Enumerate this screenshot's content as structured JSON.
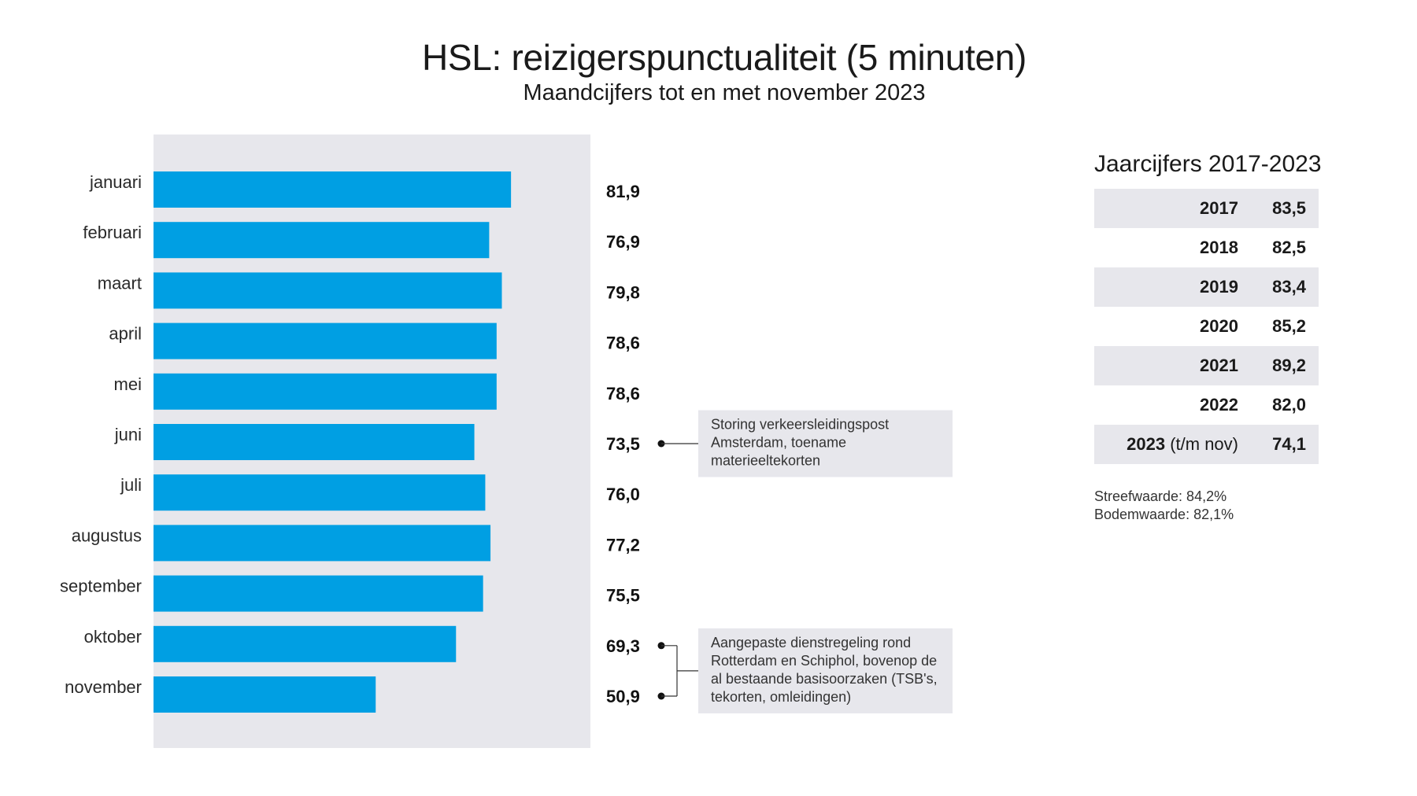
{
  "title": "HSL: reizigerspunctualiteit (5 minuten)",
  "subtitle": "Maandcijfers tot en met november 2023",
  "chart_data": {
    "type": "bar",
    "orientation": "horizontal",
    "categories": [
      "januari",
      "februari",
      "maart",
      "april",
      "mei",
      "juni",
      "juli",
      "augustus",
      "september",
      "oktober",
      "november"
    ],
    "values": [
      81.9,
      76.9,
      79.8,
      78.6,
      78.6,
      73.5,
      76.0,
      77.2,
      75.5,
      69.3,
      50.9
    ],
    "value_labels": [
      "81,9",
      "76,9",
      "79,8",
      "78,6",
      "78,6",
      "73,5",
      "76,0",
      "77,2",
      "75,5",
      "69,3",
      "50,9"
    ],
    "xlim": [
      0,
      100
    ],
    "bar_color": "#009fe3",
    "plot_background": "#e7e7ec",
    "annotations": [
      {
        "categories": [
          "juni"
        ],
        "lines": [
          "Storing verkeersleidingspost",
          "Amsterdam, toename",
          "materieeltekorten"
        ]
      },
      {
        "categories": [
          "oktober",
          "november"
        ],
        "lines": [
          "Aangepaste dienstregeling rond",
          "Rotterdam en Schiphol, bovenop de",
          "al bestaande basisoorzaken (TSB's,",
          "tekorten, omleidingen)"
        ]
      }
    ]
  },
  "yearly": {
    "title": "Jaarcijfers 2017-2023",
    "rows": [
      {
        "year": "2017",
        "extra": "",
        "value": "83,5",
        "shaded": true
      },
      {
        "year": "2018",
        "extra": "",
        "value": "82,5",
        "shaded": false
      },
      {
        "year": "2019",
        "extra": "",
        "value": "83,4",
        "shaded": true
      },
      {
        "year": "2020",
        "extra": "",
        "value": "85,2",
        "shaded": false
      },
      {
        "year": "2021",
        "extra": "",
        "value": "89,2",
        "shaded": true
      },
      {
        "year": "2022",
        "extra": "",
        "value": "82,0",
        "shaded": false
      },
      {
        "year": "2023",
        "extra": "(t/m nov)",
        "value": "74,1",
        "shaded": true
      }
    ],
    "streefwaarde": "Streefwaarde: 84,2%",
    "bodemwaarde": "Bodemwaarde: 82,1%"
  }
}
